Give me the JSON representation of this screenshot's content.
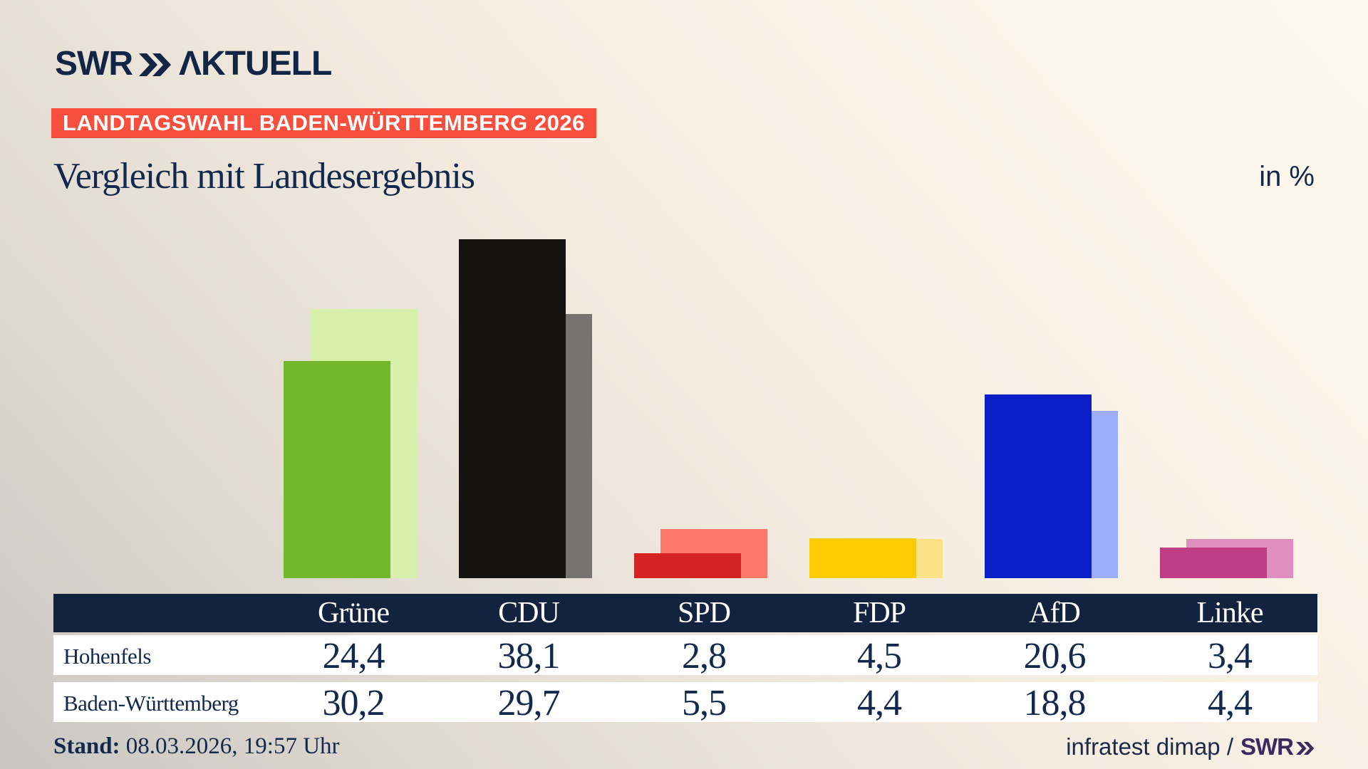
{
  "header": {
    "logo_swr": "SWR",
    "logo_aktuell": "ΛKTUELL",
    "badge": "LANDTAGSWAHL BADEN-WÜRTTEMBERG 2026"
  },
  "title": "Vergleich mit Landesergebnis",
  "unit_label": "in %",
  "chart_data": {
    "type": "bar",
    "title": "Vergleich mit Landesergebnis",
    "ylabel": "in %",
    "categories": [
      "Grüne",
      "CDU",
      "SPD",
      "FDP",
      "AfD",
      "Linke"
    ],
    "series": [
      {
        "name": "Hohenfels",
        "values": [
          24.4,
          38.1,
          2.8,
          4.5,
          20.6,
          3.4
        ]
      },
      {
        "name": "Baden-Württemberg",
        "values": [
          30.2,
          29.7,
          5.5,
          4.4,
          18.8,
          4.4
        ]
      }
    ],
    "colors": {
      "front": [
        "#74b72a",
        "#151413",
        "#d32322",
        "#fecb02",
        "#0b1fc8",
        "#bf3d85"
      ],
      "back": [
        "#d7f1aa",
        "#767370",
        "#fc786d",
        "#fce287",
        "#9dadfa",
        "#de8fbe"
      ]
    },
    "ylim": [
      0,
      40
    ],
    "grid": false,
    "legend_position": "table-rows-below"
  },
  "table": {
    "columns": [
      "Grüne",
      "CDU",
      "SPD",
      "FDP",
      "AfD",
      "Linke"
    ],
    "rows": [
      {
        "label": "Hohenfels",
        "values": [
          "24,4",
          "38,1",
          "2,8",
          "4,5",
          "20,6",
          "3,4"
        ]
      },
      {
        "label": "Baden-Württemberg",
        "values": [
          "30,2",
          "29,7",
          "5,5",
          "4,4",
          "18,8",
          "4,4"
        ]
      }
    ]
  },
  "footer": {
    "stand_label": "Stand:",
    "stand_value": "08.03.2026, 19:57 Uhr",
    "source_text": "infratest dimap /",
    "source_brand": "SWR"
  },
  "colors": {
    "badge_bg": "#f84e3d",
    "badge_text": "#ffffff",
    "navy_text": "#12294d",
    "table_header_bg": "#13233f",
    "table_row_bg": "#ffffff",
    "logo_navy": "#132544",
    "source_brand_purple": "#3c2a5e",
    "background_light": "#fdf6ea",
    "background_dark": "#c9c6c1"
  }
}
